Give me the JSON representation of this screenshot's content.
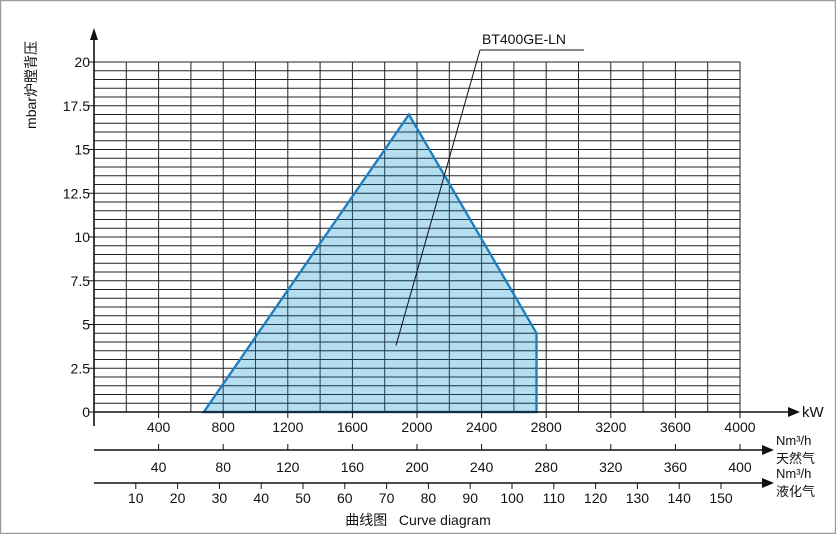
{
  "chart_data": {
    "type": "area",
    "title": "",
    "ylabel": "mbar炉膛背压",
    "ylim": [
      0,
      20
    ],
    "y_ticks": [
      "0",
      "2.5",
      "5",
      "7.5",
      "10",
      "12.5",
      "15",
      "17.5",
      "20"
    ],
    "y_tick_values": [
      0,
      2.5,
      5,
      7.5,
      10,
      12.5,
      15,
      17.5,
      20
    ],
    "xlim": [
      0,
      4000
    ],
    "x_axes": [
      {
        "name": "kW",
        "unit_label": "kW",
        "type_label": "",
        "ticks": [
          "400",
          "800",
          "1200",
          "1600",
          "2000",
          "2400",
          "2800",
          "3200",
          "3600",
          "4000"
        ],
        "values": [
          400,
          800,
          1200,
          1600,
          2000,
          2400,
          2800,
          3200,
          3600,
          4000
        ]
      },
      {
        "name": "天然气",
        "unit_label": "Nm³/h",
        "type_label": "天然气",
        "ticks": [
          "40",
          "80",
          "120",
          "160",
          "200",
          "240",
          "280",
          "320",
          "360",
          "400"
        ],
        "values": [
          40,
          80,
          120,
          160,
          200,
          240,
          280,
          320,
          360,
          400
        ]
      },
      {
        "name": "液化气",
        "unit_label": "Nm³/h",
        "type_label": "液化气",
        "ticks": [
          "10",
          "20",
          "30",
          "40",
          "50",
          "60",
          "70",
          "80",
          "90",
          "100",
          "110",
          "120",
          "130",
          "140",
          "150"
        ],
        "values": [
          10,
          20,
          30,
          40,
          50,
          60,
          70,
          80,
          90,
          100,
          110,
          120,
          130,
          140,
          150
        ]
      }
    ],
    "series": [
      {
        "name": "BT400GE-LN",
        "points": [
          {
            "x": 680,
            "y": 0
          },
          {
            "x": 1950,
            "y": 17
          },
          {
            "x": 2740,
            "y": 4.5
          },
          {
            "x": 2740,
            "y": 0
          }
        ],
        "fill": "#a8d8ef",
        "stroke": "#1f7fbf"
      }
    ],
    "annotations": [
      {
        "text": "BT400GE-LN",
        "target_x": 1870,
        "target_y": 3.8
      }
    ],
    "grid": true,
    "caption": "曲线图   Curve diagram"
  }
}
